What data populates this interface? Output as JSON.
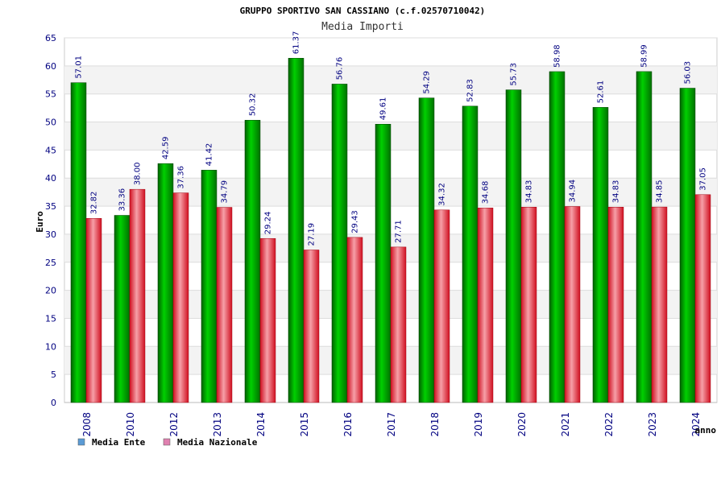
{
  "chart_data": {
    "type": "bar",
    "title": "GRUPPO SPORTIVO SAN CASSIANO (c.f.02570710042)",
    "subtitle": "Media Importi",
    "xlabel": "anno",
    "ylabel": "Euro",
    "ylim": [
      0,
      65
    ],
    "ytick_step": 5,
    "grid": true,
    "legend_position": "bottom-left",
    "categories": [
      "2008",
      "2010",
      "2012",
      "2013",
      "2014",
      "2015",
      "2016",
      "2017",
      "2018",
      "2019",
      "2020",
      "2021",
      "2022",
      "2023",
      "2024"
    ],
    "series": [
      {
        "name": "Media Ente",
        "color": "#00a000",
        "legend_color": "#5b9bd5",
        "values": [
          57.01,
          33.36,
          42.59,
          41.42,
          50.32,
          61.37,
          56.76,
          49.61,
          54.29,
          52.83,
          55.73,
          58.98,
          52.61,
          58.99,
          56.03
        ],
        "labels": [
          "57.01",
          "33.36",
          "42.59",
          "41.42",
          "50.32",
          "61.37",
          "56.76",
          "49.61",
          "54.29",
          "52.83",
          "55.73",
          "58.98",
          "52.61",
          "58.99",
          "56.03"
        ]
      },
      {
        "name": "Media Nazionale",
        "color": "#e03040",
        "legend_color": "#e080b0",
        "values": [
          32.82,
          38.0,
          37.36,
          34.79,
          29.24,
          27.19,
          29.43,
          27.71,
          34.32,
          34.68,
          34.83,
          34.94,
          34.83,
          34.85,
          37.05
        ],
        "labels": [
          "32.82",
          "38.00",
          "37.36",
          "34.79",
          "29.24",
          "27.19",
          "29.43",
          "27.71",
          "34.32",
          "34.68",
          "34.83",
          "34.94",
          "34.83",
          "34.85",
          "37.05"
        ]
      }
    ]
  }
}
